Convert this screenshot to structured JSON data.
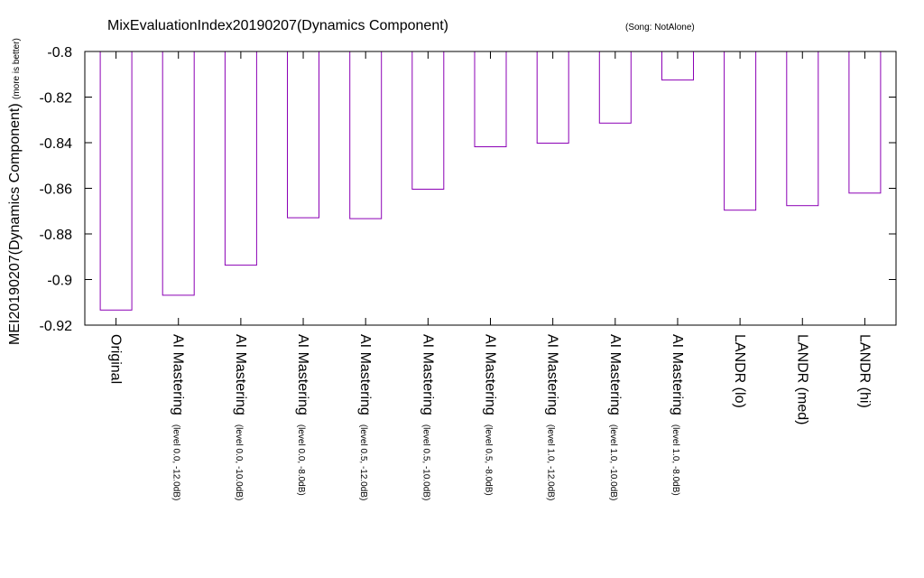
{
  "chart_data": {
    "type": "bar",
    "title": "MixEvaluationIndex20190207(Dynamics Component)",
    "subtitle": "(Song: NotAlone)",
    "ylabel": "MEI20190207(Dynamics Component)",
    "ylabel_note": "(more is better)",
    "xlabel": "",
    "ylim": [
      -0.92,
      -0.8
    ],
    "y_ticks": [
      "-0.8",
      "-0.82",
      "-0.84",
      "-0.86",
      "-0.88",
      "-0.9",
      "-0.92"
    ],
    "y_tick_values": [
      -0.8,
      -0.82,
      -0.84,
      -0.86,
      -0.88,
      -0.9,
      -0.92
    ],
    "bar_color": "#8b00b5",
    "grid": false,
    "legend": "none",
    "categories": [
      {
        "label": "Original",
        "detail": ""
      },
      {
        "label": "AI Mastering",
        "detail": "(level 0.0, -12.0dB)"
      },
      {
        "label": "AI Mastering",
        "detail": "(level 0.0, -10.0dB)"
      },
      {
        "label": "AI Mastering",
        "detail": "(level 0.0, -8.0dB)"
      },
      {
        "label": "AI Mastering",
        "detail": "(level 0.5, -12.0dB)"
      },
      {
        "label": "AI Mastering",
        "detail": "(level 0.5, -10.0dB)"
      },
      {
        "label": "AI Mastering",
        "detail": "(level 0.5, -8.0dB)"
      },
      {
        "label": "AI Mastering",
        "detail": "(level 1.0, -12.0dB)"
      },
      {
        "label": "AI Mastering",
        "detail": "(level 1.0, -10.0dB)"
      },
      {
        "label": "AI Mastering",
        "detail": "(level 1.0, -8.0dB)"
      },
      {
        "label": "LANDR (lo)",
        "detail": ""
      },
      {
        "label": "LANDR (med)",
        "detail": ""
      },
      {
        "label": "LANDR (hi)",
        "detail": ""
      }
    ],
    "values": [
      -0.9134,
      -0.9069,
      -0.8937,
      -0.8729,
      -0.8733,
      -0.8604,
      -0.8418,
      -0.8402,
      -0.8314,
      -0.8125,
      -0.8696,
      -0.8676,
      -0.8621
    ]
  }
}
